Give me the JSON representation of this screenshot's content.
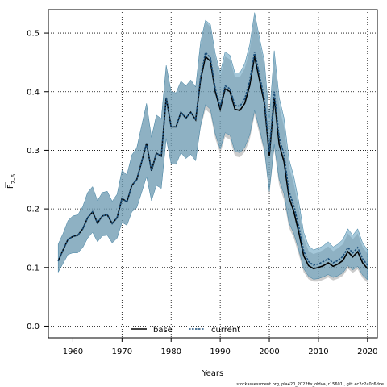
{
  "chart_data": {
    "type": "line",
    "title": "",
    "xlabel": "Years",
    "ylabel_main": "F",
    "ylabel_sub": "2–6",
    "xlim": [
      1955,
      2022
    ],
    "ylim": [
      -0.02,
      0.54
    ],
    "xticks": [
      1960,
      1970,
      1980,
      1990,
      2000,
      2010,
      2020
    ],
    "yticks": [
      0.0,
      0.1,
      0.2,
      0.3,
      0.4,
      0.5
    ],
    "grid": true,
    "legend_position": "bottom-center",
    "footnote": "stockassessment.org, pla420_2022fix_oldva, r15601 , git: ec2c2a0c6dde",
    "colors": {
      "band_current": "#5b9bbb",
      "band_current_opacity": 0.55,
      "band_base": "#999999",
      "band_base_opacity": 0.5,
      "line_base": "#000000",
      "line_current": "#1a4e7a"
    },
    "x": [
      1957,
      1958,
      1959,
      1960,
      1961,
      1962,
      1963,
      1964,
      1965,
      1966,
      1967,
      1968,
      1969,
      1970,
      1971,
      1972,
      1973,
      1974,
      1975,
      1976,
      1977,
      1978,
      1979,
      1980,
      1981,
      1982,
      1983,
      1984,
      1985,
      1986,
      1987,
      1988,
      1989,
      1990,
      1991,
      1992,
      1993,
      1994,
      1995,
      1996,
      1997,
      1998,
      1999,
      2000,
      2001,
      2002,
      2003,
      2004,
      2005,
      2006,
      2007,
      2008,
      2009,
      2010,
      2011,
      2012,
      2013,
      2014,
      2015,
      2016,
      2017,
      2018,
      2019,
      2020
    ],
    "series": [
      {
        "name": "base",
        "values": [
          0.111,
          0.13,
          0.148,
          0.153,
          0.155,
          0.166,
          0.185,
          0.195,
          0.176,
          0.188,
          0.19,
          0.175,
          0.185,
          0.218,
          0.212,
          0.24,
          0.25,
          0.28,
          0.312,
          0.265,
          0.295,
          0.29,
          0.39,
          0.34,
          0.34,
          0.365,
          0.355,
          0.365,
          0.352,
          0.42,
          0.46,
          0.452,
          0.4,
          0.37,
          0.405,
          0.4,
          0.37,
          0.368,
          0.38,
          0.41,
          0.46,
          0.42,
          0.38,
          0.29,
          0.39,
          0.31,
          0.28,
          0.22,
          0.195,
          0.16,
          0.12,
          0.103,
          0.098,
          0.1,
          0.103,
          0.108,
          0.102,
          0.106,
          0.112,
          0.127,
          0.118,
          0.127,
          0.108,
          0.098
        ],
        "lower": [
          0.092,
          0.107,
          0.122,
          0.125,
          0.125,
          0.134,
          0.15,
          0.16,
          0.144,
          0.154,
          0.155,
          0.142,
          0.15,
          0.177,
          0.172,
          0.195,
          0.202,
          0.228,
          0.255,
          0.214,
          0.24,
          0.235,
          0.32,
          0.277,
          0.276,
          0.296,
          0.286,
          0.293,
          0.282,
          0.338,
          0.37,
          0.362,
          0.32,
          0.295,
          0.323,
          0.318,
          0.29,
          0.288,
          0.297,
          0.318,
          0.36,
          0.328,
          0.295,
          0.223,
          0.302,
          0.24,
          0.215,
          0.168,
          0.15,
          0.122,
          0.092,
          0.08,
          0.076,
          0.076,
          0.079,
          0.083,
          0.078,
          0.081,
          0.086,
          0.098,
          0.091,
          0.097,
          0.082,
          0.074
        ],
        "upper": [
          0.14,
          0.158,
          0.18,
          0.188,
          0.19,
          0.204,
          0.228,
          0.238,
          0.214,
          0.228,
          0.23,
          0.213,
          0.225,
          0.266,
          0.258,
          0.292,
          0.304,
          0.342,
          0.38,
          0.322,
          0.36,
          0.354,
          0.445,
          0.4,
          0.398,
          0.418,
          0.41,
          0.42,
          0.408,
          0.48,
          0.52,
          0.51,
          0.46,
          0.425,
          0.46,
          0.455,
          0.425,
          0.425,
          0.44,
          0.47,
          0.53,
          0.485,
          0.445,
          0.345,
          0.46,
          0.375,
          0.34,
          0.272,
          0.242,
          0.2,
          0.15,
          0.128,
          0.123,
          0.126,
          0.13,
          0.136,
          0.128,
          0.133,
          0.14,
          0.158,
          0.148,
          0.158,
          0.135,
          0.124
        ]
      },
      {
        "name": "current",
        "values": [
          0.111,
          0.13,
          0.148,
          0.153,
          0.155,
          0.166,
          0.185,
          0.195,
          0.176,
          0.188,
          0.19,
          0.175,
          0.185,
          0.218,
          0.212,
          0.24,
          0.25,
          0.28,
          0.312,
          0.265,
          0.295,
          0.29,
          0.39,
          0.34,
          0.34,
          0.365,
          0.355,
          0.365,
          0.352,
          0.425,
          0.467,
          0.458,
          0.405,
          0.375,
          0.41,
          0.405,
          0.377,
          0.375,
          0.388,
          0.418,
          0.468,
          0.428,
          0.388,
          0.298,
          0.4,
          0.322,
          0.292,
          0.23,
          0.205,
          0.17,
          0.128,
          0.11,
          0.104,
          0.106,
          0.11,
          0.115,
          0.108,
          0.112,
          0.119,
          0.134,
          0.125,
          0.134,
          0.115,
          0.104
        ],
        "lower": [
          0.092,
          0.107,
          0.122,
          0.125,
          0.125,
          0.134,
          0.15,
          0.16,
          0.144,
          0.154,
          0.155,
          0.142,
          0.15,
          0.177,
          0.172,
          0.195,
          0.202,
          0.228,
          0.255,
          0.214,
          0.24,
          0.235,
          0.32,
          0.277,
          0.276,
          0.296,
          0.286,
          0.293,
          0.282,
          0.342,
          0.378,
          0.37,
          0.328,
          0.302,
          0.33,
          0.326,
          0.298,
          0.296,
          0.305,
          0.326,
          0.368,
          0.336,
          0.302,
          0.23,
          0.31,
          0.25,
          0.225,
          0.176,
          0.158,
          0.13,
          0.098,
          0.085,
          0.08,
          0.081,
          0.084,
          0.088,
          0.083,
          0.086,
          0.091,
          0.103,
          0.096,
          0.102,
          0.087,
          0.079
        ],
        "upper": [
          0.14,
          0.158,
          0.18,
          0.188,
          0.19,
          0.204,
          0.228,
          0.238,
          0.214,
          0.228,
          0.23,
          0.213,
          0.225,
          0.266,
          0.258,
          0.292,
          0.304,
          0.342,
          0.38,
          0.322,
          0.36,
          0.354,
          0.445,
          0.4,
          0.398,
          0.418,
          0.41,
          0.42,
          0.408,
          0.485,
          0.522,
          0.515,
          0.465,
          0.432,
          0.468,
          0.462,
          0.432,
          0.432,
          0.448,
          0.48,
          0.535,
          0.492,
          0.452,
          0.355,
          0.47,
          0.39,
          0.355,
          0.285,
          0.255,
          0.212,
          0.16,
          0.137,
          0.13,
          0.133,
          0.137,
          0.144,
          0.135,
          0.14,
          0.148,
          0.166,
          0.155,
          0.166,
          0.142,
          0.13
        ]
      }
    ]
  }
}
